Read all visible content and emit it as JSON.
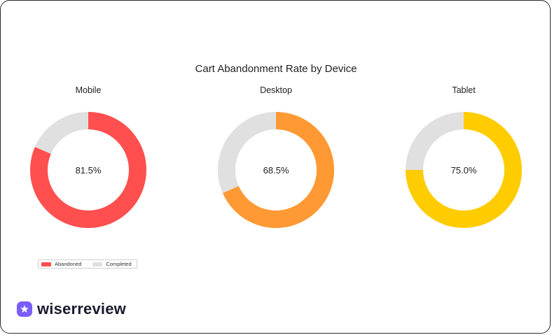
{
  "colors": {
    "mobile": "#ff4f4f",
    "desktop": "#ff9933",
    "tablet": "#ffcc00",
    "completed": "#e0e0e0",
    "brand": "#7a5cff"
  },
  "brand": {
    "name": "wiserreview",
    "logo_icon": "star-badge-icon"
  },
  "chart_data": {
    "type": "pie",
    "variant": "donut",
    "title": "Cart Abandonment Rate by Device",
    "legend_position": "bottom-left",
    "series_labels": [
      "Abandoned",
      "Completed"
    ],
    "panels": [
      {
        "name": "Mobile",
        "abandoned": 81.5,
        "completed": 18.5,
        "label": "81.5%",
        "color_key": "mobile"
      },
      {
        "name": "Desktop",
        "abandoned": 68.5,
        "completed": 31.5,
        "label": "68.5%",
        "color_key": "desktop"
      },
      {
        "name": "Tablet",
        "abandoned": 75.0,
        "completed": 25.0,
        "label": "75.0%",
        "color_key": "tablet"
      }
    ]
  }
}
